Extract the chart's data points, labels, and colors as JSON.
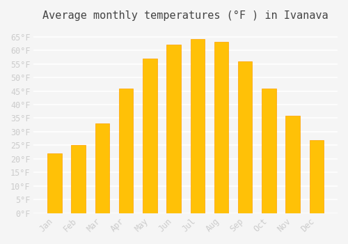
{
  "title": "Average monthly temperatures (°F ) in Ivanava",
  "months": [
    "Jan",
    "Feb",
    "Mar",
    "Apr",
    "May",
    "Jun",
    "Jul",
    "Aug",
    "Sep",
    "Oct",
    "Nov",
    "Dec"
  ],
  "values": [
    22,
    25,
    33,
    46,
    57,
    62,
    64,
    63,
    56,
    46,
    36,
    27
  ],
  "bar_color": "#FFC107",
  "bar_edge_color": "#FFA000",
  "background_color": "#F5F5F5",
  "grid_color": "#FFFFFF",
  "text_color": "#CCCCCC",
  "ylim": [
    0,
    68
  ],
  "yticks": [
    0,
    5,
    10,
    15,
    20,
    25,
    30,
    35,
    40,
    45,
    50,
    55,
    60,
    65
  ],
  "title_fontsize": 11,
  "tick_fontsize": 8.5
}
